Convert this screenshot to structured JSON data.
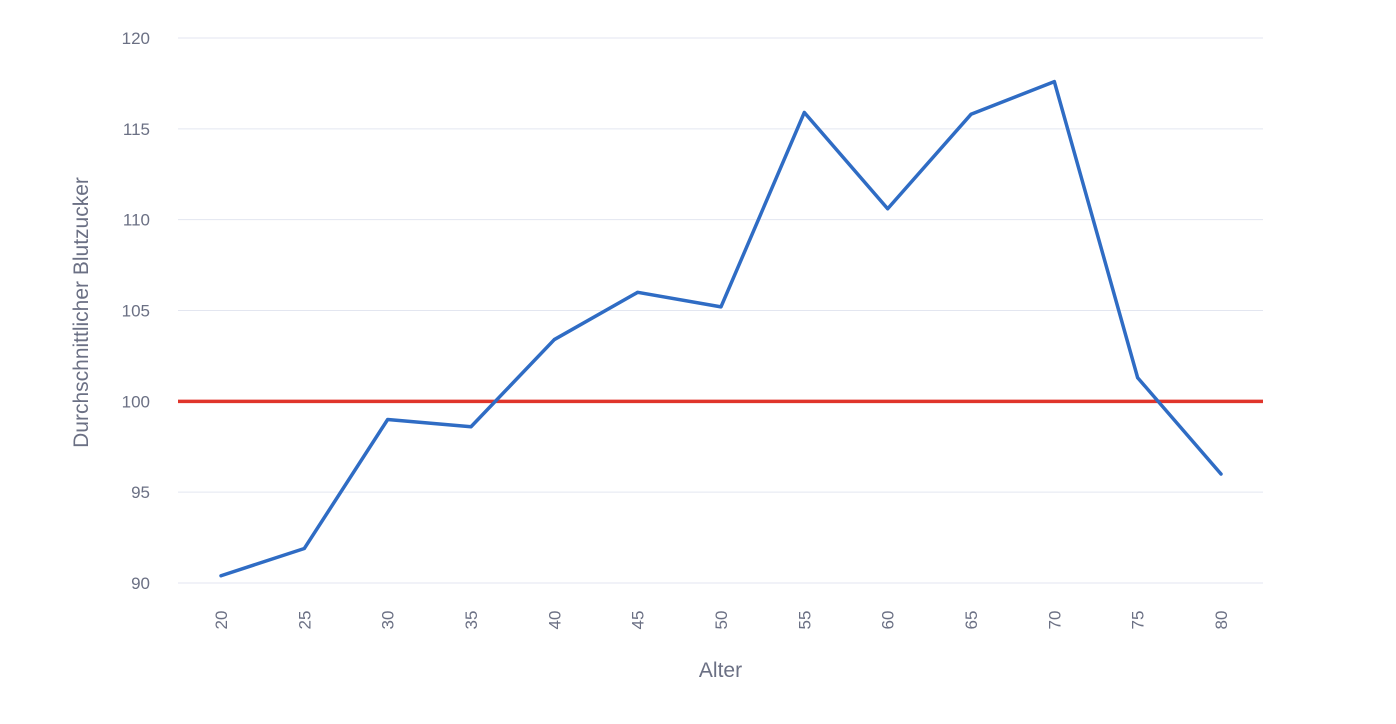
{
  "chart_data": {
    "type": "line",
    "title": "",
    "xlabel": "Alter",
    "ylabel": "Durchschnittlicher Blutzucker",
    "x": [
      20,
      25,
      30,
      35,
      40,
      45,
      50,
      55,
      60,
      65,
      70,
      75,
      80
    ],
    "series": [
      {
        "color": "#2f6cc4",
        "values": [
          90.4,
          91.9,
          99.0,
          98.6,
          103.4,
          106.0,
          105.2,
          115.9,
          110.6,
          115.8,
          117.6,
          101.3,
          96.0
        ]
      }
    ],
    "reference_line": {
      "y": 100,
      "color": "#e0352b"
    },
    "y_ticks": [
      90,
      95,
      100,
      105,
      110,
      115,
      120
    ],
    "ylim": [
      90,
      120
    ],
    "grid": true,
    "legend": false
  }
}
